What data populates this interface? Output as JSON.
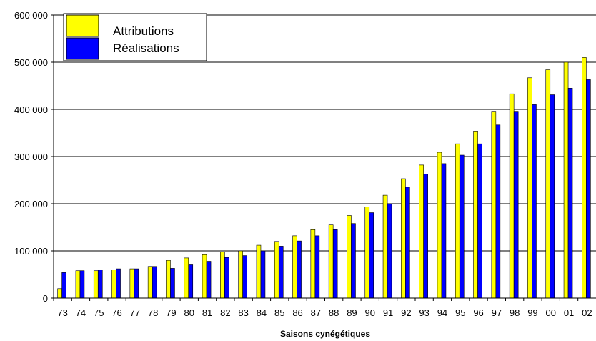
{
  "chart_data": {
    "type": "bar",
    "title": "",
    "xlabel": "Saisons cynégétiques",
    "ylabel": "",
    "ylim": [
      0,
      600000
    ],
    "y_ticks": [
      "0",
      "100 000",
      "200 000",
      "300 000",
      "400 000",
      "500 000",
      "600 000"
    ],
    "y_tick_values": [
      0,
      100000,
      200000,
      300000,
      400000,
      500000,
      600000
    ],
    "grid": true,
    "legend_position": "top-left",
    "categories": [
      "73",
      "74",
      "75",
      "76",
      "77",
      "78",
      "79",
      "80",
      "81",
      "82",
      "83",
      "84",
      "85",
      "86",
      "87",
      "88",
      "89",
      "90",
      "91",
      "92",
      "93",
      "94",
      "95",
      "96",
      "97",
      "98",
      "99",
      "00",
      "01",
      "02"
    ],
    "series": [
      {
        "name": "Attributions",
        "color": "#FFFF00",
        "values": [
          20000,
          58000,
          58000,
          60000,
          62000,
          67000,
          80000,
          85000,
          92000,
          98000,
          100000,
          112000,
          120000,
          132000,
          145000,
          155000,
          175000,
          193000,
          218000,
          253000,
          282000,
          309000,
          327000,
          354000,
          396000,
          433000,
          467000,
          484000,
          500000,
          510000
        ]
      },
      {
        "name": "Réalisations",
        "color": "#0000FF",
        "values": [
          54000,
          58000,
          60000,
          62000,
          62000,
          67000,
          63000,
          72000,
          78000,
          86000,
          90000,
          100000,
          110000,
          121000,
          132000,
          145000,
          158000,
          181000,
          200000,
          235000,
          263000,
          285000,
          303000,
          327000,
          367000,
          396000,
          410000,
          431000,
          445000,
          463000
        ]
      }
    ]
  }
}
